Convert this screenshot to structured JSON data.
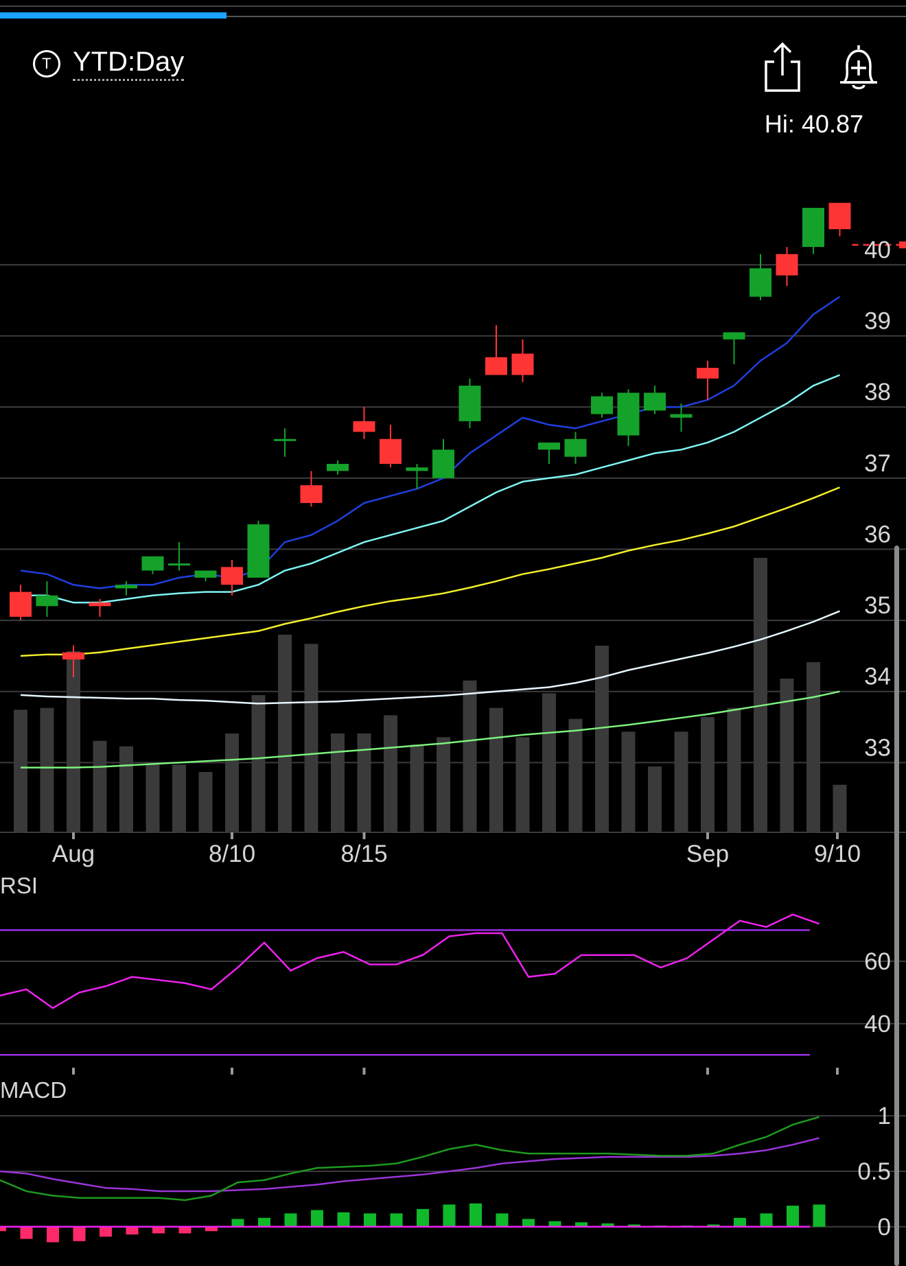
{
  "header": {
    "badge_letter": "T",
    "range_label": "YTD:Day",
    "hi_label": "Hi: 40.87",
    "share_icon": "share-icon",
    "alert_icon": "bell-plus-icon"
  },
  "progress": {
    "fraction": 0.25
  },
  "colors": {
    "up": "#15a22a",
    "down": "#ff3535",
    "ma_blue": "#1f3fe0",
    "ma_cyan": "#7ff5f5",
    "ma_yellow": "#f3ef2a",
    "ma_white": "#e6f6ff",
    "ma_green": "#7df27d",
    "volume": "#3a3a3a",
    "rsi_line": "#ee22ee",
    "rsi_band": "#9a2ee8",
    "macd_line": "#1d9a1d",
    "signal_line": "#9a34d8",
    "hist_pos": "#0fb92a",
    "hist_neg": "#ff2a6a"
  },
  "chart_data": [
    {
      "type": "candlestick",
      "title": "",
      "x_ticks": [
        "Aug",
        "8/10",
        "8/15",
        "Sep",
        "9/10"
      ],
      "y_ticks": [
        "40",
        "39",
        "38",
        "37",
        "36",
        "35",
        "34",
        "33"
      ],
      "ylim": [
        32.0,
        41.6
      ],
      "last_price_line": 40.28,
      "high_marker": "Hi: 40.87",
      "candles": [
        {
          "o": 35.4,
          "h": 35.5,
          "c": 35.05,
          "l": 35.0
        },
        {
          "o": 35.2,
          "h": 35.55,
          "c": 35.35,
          "l": 35.05
        },
        {
          "o": 34.55,
          "h": 34.65,
          "c": 34.45,
          "l": 34.2
        },
        {
          "o": 35.25,
          "h": 35.3,
          "c": 35.2,
          "l": 35.05
        },
        {
          "o": 35.45,
          "h": 35.55,
          "c": 35.5,
          "l": 35.35
        },
        {
          "o": 35.7,
          "h": 35.9,
          "c": 35.9,
          "l": 35.65
        },
        {
          "o": 35.8,
          "h": 36.1,
          "c": 35.8,
          "l": 35.7
        },
        {
          "o": 35.6,
          "h": 35.68,
          "c": 35.7,
          "l": 35.55
        },
        {
          "o": 35.75,
          "h": 35.85,
          "c": 35.5,
          "l": 35.35
        },
        {
          "o": 35.6,
          "h": 36.4,
          "c": 36.35,
          "l": 35.6
        },
        {
          "o": 37.55,
          "h": 37.7,
          "c": 37.55,
          "l": 37.3
        },
        {
          "o": 36.9,
          "h": 37.1,
          "c": 36.65,
          "l": 36.6
        },
        {
          "o": 37.1,
          "h": 37.25,
          "c": 37.2,
          "l": 37.05
        },
        {
          "o": 37.8,
          "h": 38.0,
          "c": 37.65,
          "l": 37.55
        },
        {
          "o": 37.55,
          "h": 37.75,
          "c": 37.2,
          "l": 37.15
        },
        {
          "o": 37.1,
          "h": 37.2,
          "c": 37.15,
          "l": 36.85
        },
        {
          "o": 37.0,
          "h": 37.55,
          "c": 37.4,
          "l": 37.0
        },
        {
          "o": 37.8,
          "h": 38.4,
          "c": 38.3,
          "l": 37.7
        },
        {
          "o": 38.7,
          "h": 39.15,
          "c": 38.45,
          "l": 38.45
        },
        {
          "o": 38.75,
          "h": 38.95,
          "c": 38.45,
          "l": 38.35
        },
        {
          "o": 37.4,
          "h": 37.5,
          "c": 37.5,
          "l": 37.2
        },
        {
          "o": 37.3,
          "h": 37.65,
          "c": 37.55,
          "l": 37.2
        },
        {
          "o": 37.9,
          "h": 38.2,
          "c": 38.15,
          "l": 37.85
        },
        {
          "o": 37.6,
          "h": 38.25,
          "c": 38.2,
          "l": 37.45
        },
        {
          "o": 37.95,
          "h": 38.3,
          "c": 38.2,
          "l": 37.9
        },
        {
          "o": 37.85,
          "h": 38.05,
          "c": 37.9,
          "l": 37.65
        },
        {
          "o": 38.55,
          "h": 38.65,
          "c": 38.4,
          "l": 38.1
        },
        {
          "o": 38.95,
          "h": 39.05,
          "c": 39.05,
          "l": 38.6
        },
        {
          "o": 39.55,
          "h": 40.15,
          "c": 39.95,
          "l": 39.5
        },
        {
          "o": 40.15,
          "h": 40.25,
          "c": 39.85,
          "l": 39.7
        },
        {
          "o": 40.25,
          "h": 40.8,
          "c": 40.8,
          "l": 40.15
        },
        {
          "o": 40.87,
          "h": 40.87,
          "c": 40.5,
          "l": 40.4
        }
      ],
      "moving_averages": [
        {
          "color_key": "ma_blue",
          "values": [
            35.7,
            35.65,
            35.5,
            35.45,
            35.5,
            35.5,
            35.6,
            35.65,
            35.6,
            35.7,
            36.1,
            36.2,
            36.4,
            36.65,
            36.75,
            36.85,
            37.0,
            37.35,
            37.6,
            37.85,
            37.75,
            37.7,
            37.8,
            37.9,
            38.0,
            38.0,
            38.1,
            38.3,
            38.65,
            38.9,
            39.3,
            39.55
          ]
        },
        {
          "color_key": "ma_cyan",
          "values": [
            35.35,
            35.35,
            35.25,
            35.25,
            35.3,
            35.35,
            35.38,
            35.4,
            35.4,
            35.5,
            35.7,
            35.8,
            35.95,
            36.1,
            36.2,
            36.3,
            36.4,
            36.6,
            36.8,
            36.95,
            37.0,
            37.05,
            37.15,
            37.25,
            37.35,
            37.4,
            37.5,
            37.65,
            37.85,
            38.05,
            38.3,
            38.45
          ]
        },
        {
          "color_key": "ma_yellow",
          "values": [
            34.5,
            34.52,
            34.52,
            34.55,
            34.6,
            34.65,
            34.7,
            34.75,
            34.8,
            34.85,
            34.95,
            35.03,
            35.12,
            35.2,
            35.27,
            35.32,
            35.38,
            35.46,
            35.55,
            35.65,
            35.72,
            35.8,
            35.88,
            35.98,
            36.06,
            36.13,
            36.22,
            36.32,
            36.45,
            36.58,
            36.72,
            36.87
          ]
        },
        {
          "color_key": "ma_white",
          "values": [
            33.95,
            33.93,
            33.92,
            33.91,
            33.9,
            33.9,
            33.88,
            33.87,
            33.85,
            33.83,
            33.84,
            33.85,
            33.86,
            33.88,
            33.9,
            33.92,
            33.94,
            33.97,
            34.0,
            34.03,
            34.06,
            34.12,
            34.2,
            34.3,
            34.38,
            34.46,
            34.54,
            34.63,
            34.73,
            34.85,
            34.98,
            35.13
          ]
        },
        {
          "color_key": "ma_green",
          "values": [
            32.93,
            32.93,
            32.93,
            32.94,
            32.96,
            32.98,
            33.0,
            33.02,
            33.04,
            33.06,
            33.09,
            33.12,
            33.15,
            33.18,
            33.21,
            33.24,
            33.27,
            33.31,
            33.35,
            33.39,
            33.42,
            33.45,
            33.49,
            33.53,
            33.58,
            33.63,
            33.68,
            33.74,
            33.8,
            33.86,
            33.92,
            34.0
          ]
        }
      ],
      "volume_rel": [
        0.67,
        0.68,
        0.99,
        0.5,
        0.47,
        0.37,
        0.37,
        0.33,
        0.54,
        0.75,
        1.08,
        1.03,
        0.54,
        0.54,
        0.64,
        0.48,
        0.52,
        0.83,
        0.68,
        0.52,
        0.76,
        0.62,
        1.02,
        0.55,
        0.36,
        0.55,
        0.63,
        0.68,
        1.5,
        0.84,
        0.93,
        0.26
      ]
    },
    {
      "type": "line",
      "title": "RSI",
      "y_ticks": [
        "60",
        "40"
      ],
      "ylim": [
        25,
        80
      ],
      "bands": [
        70,
        30
      ],
      "values": [
        49,
        51,
        45,
        50,
        52,
        55,
        54,
        53,
        51,
        58,
        66,
        57,
        61,
        63,
        59,
        59,
        62,
        68,
        69,
        69,
        55,
        56,
        62,
        62,
        62,
        58,
        61,
        67,
        73,
        71,
        75,
        72
      ]
    },
    {
      "type": "line",
      "title": "MACD",
      "y_ticks": [
        "1",
        "0.5",
        "0"
      ],
      "ylim": [
        -0.15,
        1.1
      ],
      "macd": [
        0.42,
        0.32,
        0.28,
        0.26,
        0.26,
        0.26,
        0.26,
        0.24,
        0.28,
        0.4,
        0.42,
        0.48,
        0.53,
        0.54,
        0.55,
        0.57,
        0.63,
        0.7,
        0.74,
        0.69,
        0.66,
        0.66,
        0.66,
        0.66,
        0.65,
        0.64,
        0.64,
        0.66,
        0.74,
        0.81,
        0.92,
        0.99
      ],
      "signal": [
        0.5,
        0.48,
        0.43,
        0.39,
        0.35,
        0.34,
        0.32,
        0.32,
        0.32,
        0.33,
        0.34,
        0.36,
        0.38,
        0.41,
        0.43,
        0.45,
        0.47,
        0.5,
        0.53,
        0.57,
        0.59,
        0.61,
        0.62,
        0.63,
        0.63,
        0.63,
        0.63,
        0.64,
        0.66,
        0.69,
        0.74,
        0.8
      ],
      "histogram": [
        -0.04,
        -0.11,
        -0.14,
        -0.13,
        -0.09,
        -0.07,
        -0.06,
        -0.06,
        -0.04,
        0.07,
        0.08,
        0.12,
        0.15,
        0.13,
        0.12,
        0.12,
        0.16,
        0.2,
        0.21,
        0.12,
        0.07,
        0.05,
        0.04,
        0.03,
        0.02,
        0.01,
        0.01,
        0.02,
        0.08,
        0.12,
        0.19,
        0.2
      ]
    }
  ]
}
